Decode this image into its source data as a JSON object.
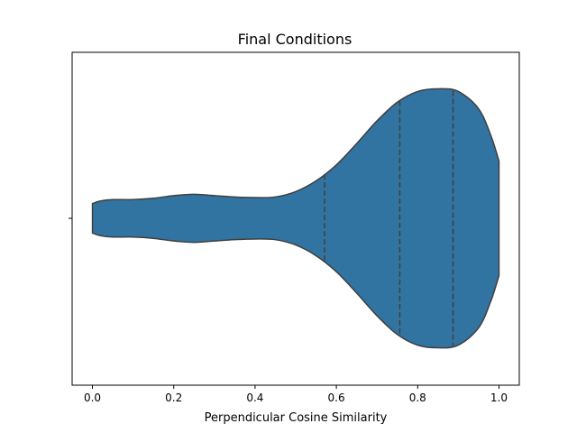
{
  "chart_data": {
    "type": "violin",
    "title": "Final Conditions",
    "xlabel": "Perpendicular Cosine Similarity",
    "ylabel": "",
    "xlim": [
      -0.05,
      1.05
    ],
    "x_ticks": [
      0.0,
      0.2,
      0.4,
      0.6,
      0.8,
      1.0
    ],
    "x_tick_labels": [
      "0.0",
      "0.2",
      "0.4",
      "0.6",
      "0.8",
      "1.0"
    ],
    "y_tick_labels": [
      ""
    ],
    "grid": false,
    "fill_color": "#3274a1",
    "edge_color": "#3f3f3f",
    "violin": {
      "range": [
        0.0,
        1.0
      ],
      "density_profile": [
        {
          "x": 0.0,
          "w": 0.11
        },
        {
          "x": 0.02,
          "w": 0.13
        },
        {
          "x": 0.05,
          "w": 0.14
        },
        {
          "x": 0.1,
          "w": 0.14
        },
        {
          "x": 0.15,
          "w": 0.15
        },
        {
          "x": 0.2,
          "w": 0.17
        },
        {
          "x": 0.25,
          "w": 0.18
        },
        {
          "x": 0.3,
          "w": 0.17
        },
        {
          "x": 0.35,
          "w": 0.16
        },
        {
          "x": 0.4,
          "w": 0.155
        },
        {
          "x": 0.45,
          "w": 0.16
        },
        {
          "x": 0.5,
          "w": 0.2
        },
        {
          "x": 0.55,
          "w": 0.28
        },
        {
          "x": 0.6,
          "w": 0.4
        },
        {
          "x": 0.65,
          "w": 0.56
        },
        {
          "x": 0.7,
          "w": 0.73
        },
        {
          "x": 0.75,
          "w": 0.87
        },
        {
          "x": 0.8,
          "w": 0.95
        },
        {
          "x": 0.85,
          "w": 0.97
        },
        {
          "x": 0.9,
          "w": 0.95
        },
        {
          "x": 0.95,
          "w": 0.82
        },
        {
          "x": 0.98,
          "w": 0.62
        },
        {
          "x": 1.0,
          "w": 0.43
        }
      ],
      "quartiles": [
        0.571,
        0.756,
        0.887
      ]
    }
  }
}
